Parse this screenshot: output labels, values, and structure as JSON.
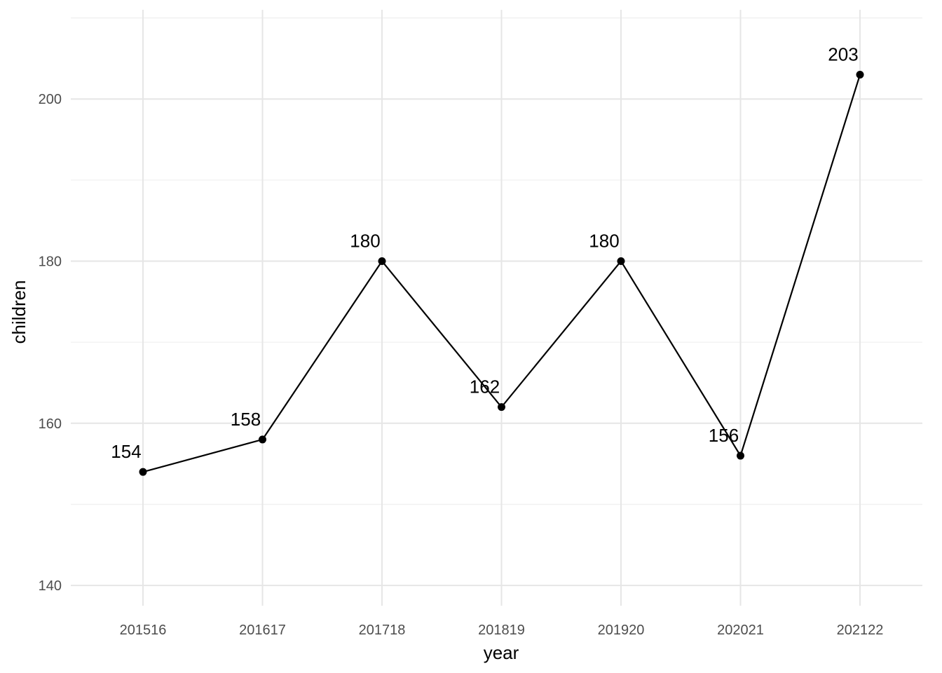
{
  "chart_data": {
    "type": "line",
    "title": "",
    "xlabel": "year",
    "ylabel": "children",
    "categories": [
      "201516",
      "201617",
      "201718",
      "201819",
      "201920",
      "202021",
      "202122"
    ],
    "values": [
      154,
      158,
      180,
      162,
      180,
      156,
      203
    ],
    "data_labels": [
      "154",
      "158",
      "180",
      "162",
      "180",
      "156",
      "203"
    ],
    "ylim": [
      137.5,
      211
    ],
    "y_ticks": [
      140,
      160,
      180,
      200
    ],
    "y_tick_labels": [
      "140",
      "160",
      "180",
      "200"
    ],
    "y_minor_ticks": [
      150,
      170,
      190,
      210
    ],
    "grid": true,
    "legend": "none",
    "line_color": "#000000",
    "grid_color": "#e6e6e6"
  }
}
